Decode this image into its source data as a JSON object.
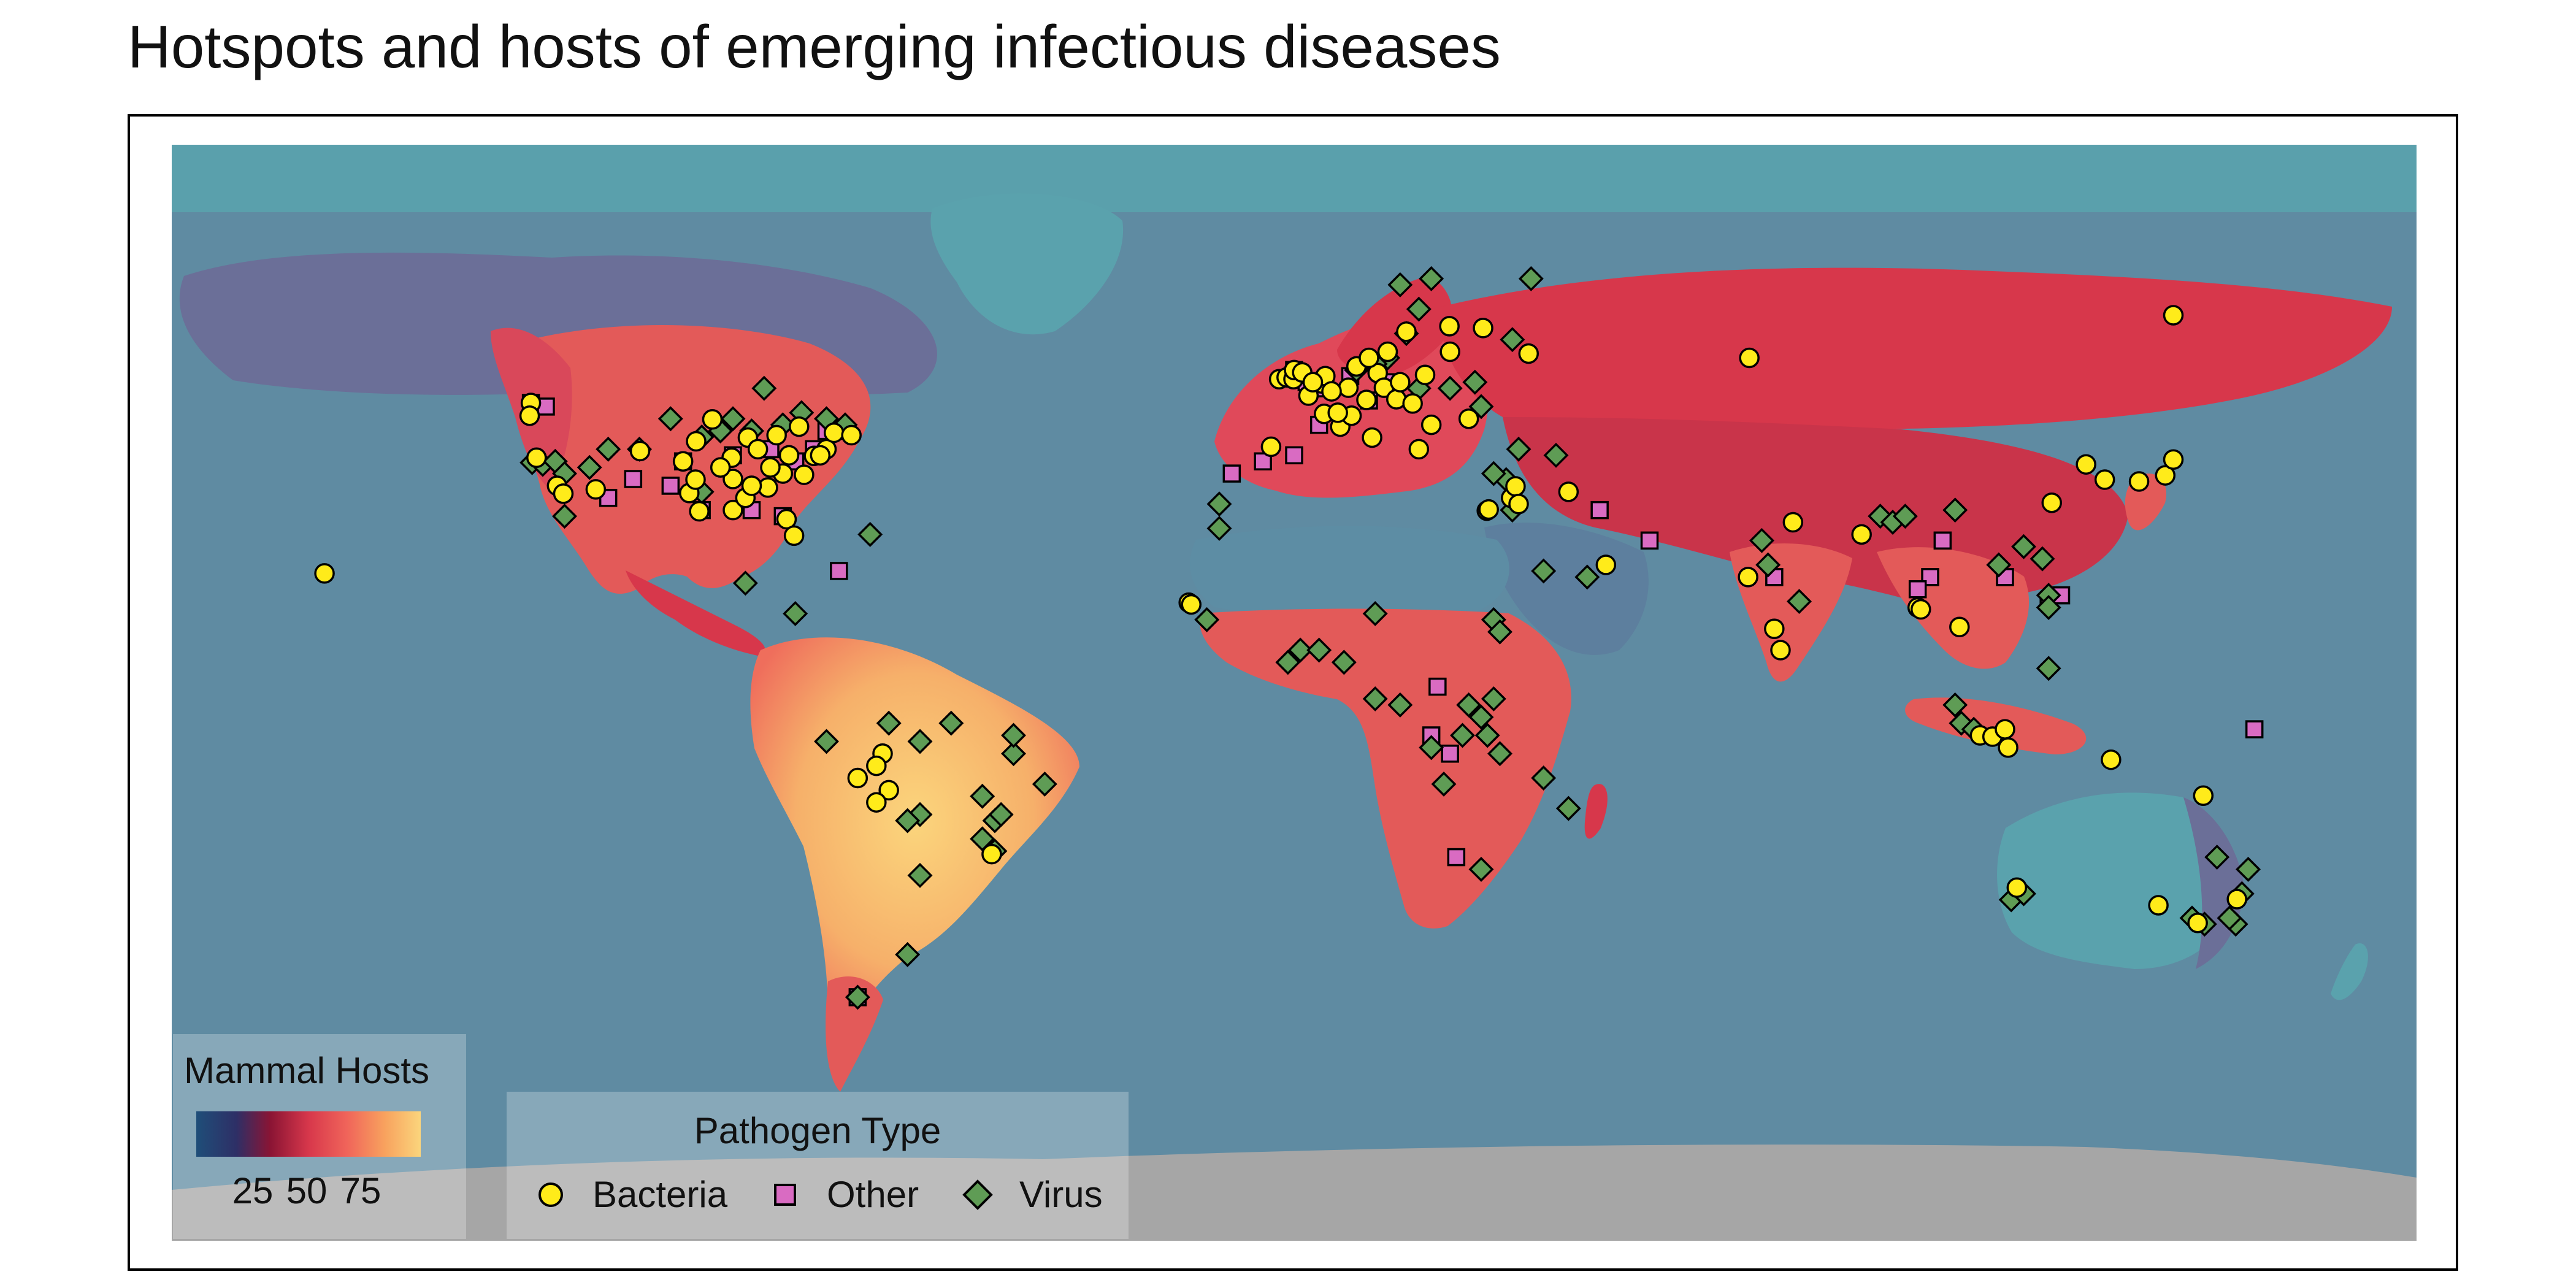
{
  "title": "Hotspots and hosts of emerging infectious diseases",
  "chart_data": {
    "type": "map-scatter",
    "projection": "equirectangular",
    "x_range_lon": [
      -180,
      180
    ],
    "y_range_lat": [
      -90,
      90
    ],
    "raster_legend": {
      "title": "Mammal Hosts",
      "tick_labels": [
        "25",
        "50",
        "75"
      ],
      "colors": [
        "#1f4e79",
        "#2e2f66",
        "#8a1434",
        "#d7374b",
        "#f0645a",
        "#f8a25e",
        "#fbd57c"
      ]
    },
    "point_legend": {
      "title": "Pathogen Type",
      "entries": [
        {
          "label": "Bacteria",
          "shape": "circle",
          "color": "#ffeb1a"
        },
        {
          "label": "Other",
          "shape": "square",
          "color": "#d96bc2"
        },
        {
          "label": "Virus",
          "shape": "diamond",
          "color": "#5f9c55"
        }
      ]
    },
    "colors": {
      "ocean": "#5f8ba2",
      "cold_land": "#5aa2ad",
      "antarctica": "#a6a6a6"
    },
    "points": {
      "Bacteria": [
        [
          -122.4,
          47.6
        ],
        [
          -122.6,
          45.5
        ],
        [
          -104.9,
          39.7
        ],
        [
          -95.9,
          41.3
        ],
        [
          -90.2,
          38.6
        ],
        [
          -87.6,
          41.9
        ],
        [
          -83,
          42.3
        ],
        [
          -79.4,
          43.7
        ],
        [
          -75,
          40
        ],
        [
          -73.8,
          42.7
        ],
        [
          -71,
          42.3
        ],
        [
          -77,
          38.9
        ],
        [
          -78.6,
          35.8
        ],
        [
          -84.4,
          33.7
        ],
        [
          -90,
          35.1
        ],
        [
          -97,
          32.8
        ],
        [
          -95.4,
          29.8
        ],
        [
          -90,
          30
        ],
        [
          -81.4,
          28.5
        ],
        [
          -80.2,
          25.8
        ],
        [
          -112,
          33.4
        ],
        [
          -118.2,
          34
        ],
        [
          -117.2,
          32.7
        ],
        [
          -121.5,
          38.6
        ],
        [
          -93.3,
          44.9
        ],
        [
          -86,
          40
        ],
        [
          -81,
          39
        ],
        [
          -76,
          39
        ],
        [
          -82,
          36
        ],
        [
          -84,
          37
        ],
        [
          -92,
          37
        ],
        [
          -96,
          35
        ],
        [
          -98,
          38
        ],
        [
          -88,
          32
        ],
        [
          -87,
          34
        ],
        [
          -155.5,
          19.6
        ],
        [
          -66,
          -10
        ],
        [
          -67,
          -12
        ],
        [
          -70,
          -14
        ],
        [
          -65,
          -16
        ],
        [
          -67,
          -18
        ],
        [
          -48.5,
          -26.5
        ],
        [
          -16.9,
          14.8
        ],
        [
          -16.5,
          14.5
        ],
        [
          -2.4,
          51.5
        ],
        [
          -1.2,
          51.8
        ],
        [
          -0.1,
          51.5
        ],
        [
          0,
          53
        ],
        [
          1.3,
          52.6
        ],
        [
          2.3,
          48.8
        ],
        [
          4.4,
          50.8
        ],
        [
          5,
          52
        ],
        [
          4.8,
          45.8
        ],
        [
          7.4,
          43.7
        ],
        [
          8.7,
          50.1
        ],
        [
          9.2,
          45.5
        ],
        [
          10,
          53.6
        ],
        [
          11.6,
          48.1
        ],
        [
          12.5,
          41.9
        ],
        [
          13.4,
          52.5
        ],
        [
          14.4,
          50.1
        ],
        [
          16.4,
          48.2
        ],
        [
          17,
          51
        ],
        [
          18,
          59.3
        ],
        [
          19,
          47.5
        ],
        [
          21,
          52.2
        ],
        [
          24.9,
          60.2
        ],
        [
          25,
          56
        ],
        [
          30.3,
          59.9
        ],
        [
          37.6,
          55.7
        ],
        [
          20,
          40
        ],
        [
          -3.7,
          40.4
        ],
        [
          6,
          49.5
        ],
        [
          7,
          46
        ],
        [
          3,
          51
        ],
        [
          15,
          56
        ],
        [
          12,
          55
        ],
        [
          22,
          44
        ],
        [
          28,
          45
        ],
        [
          30.9,
          29.9
        ],
        [
          31.2,
          30.1
        ],
        [
          34.8,
          32
        ],
        [
          35.5,
          33.9
        ],
        [
          36,
          31
        ],
        [
          50,
          21
        ],
        [
          44,
          33
        ],
        [
          72.8,
          19
        ],
        [
          77,
          10.5
        ],
        [
          78,
          7
        ],
        [
          80,
          28
        ],
        [
          91,
          26
        ],
        [
          100,
          14
        ],
        [
          100.5,
          13.7
        ],
        [
          106.7,
          10.8
        ],
        [
          110,
          -7
        ],
        [
          112,
          -7.2
        ],
        [
          114,
          -6
        ],
        [
          114.5,
          -9
        ],
        [
          121.5,
          31.2
        ],
        [
          127,
          37.5
        ],
        [
          130,
          35
        ],
        [
          135.5,
          34.7
        ],
        [
          139.7,
          35.7
        ],
        [
          141,
          38.3
        ],
        [
          131,
          -11
        ],
        [
          144.9,
          -37.8
        ],
        [
          151.2,
          -33.9
        ],
        [
          138.6,
          -34.9
        ],
        [
          115.9,
          -32
        ],
        [
          145.8,
          -16.9
        ],
        [
          73,
          55
        ],
        [
          141,
          62
        ]
      ],
      "Other": [
        [
          -122.4,
          47.6
        ],
        [
          -120,
          47
        ],
        [
          -106,
          35.1
        ],
        [
          -98,
          38
        ],
        [
          -90,
          39
        ],
        [
          -84,
          40
        ],
        [
          -80,
          38
        ],
        [
          -77,
          40
        ],
        [
          -75,
          43
        ],
        [
          -73,
          43
        ],
        [
          -100,
          34
        ],
        [
          -110,
          32
        ],
        [
          -95,
          30
        ],
        [
          -87,
          30
        ],
        [
          -82,
          29
        ],
        [
          -73,
          20
        ],
        [
          -10,
          36
        ],
        [
          -5,
          38
        ],
        [
          0,
          39
        ],
        [
          0,
          53
        ],
        [
          2,
          51
        ],
        [
          5,
          50
        ],
        [
          9,
          52
        ],
        [
          12,
          48
        ],
        [
          15,
          51
        ],
        [
          4,
          44
        ],
        [
          23,
          1
        ],
        [
          22,
          -7
        ],
        [
          25,
          -10
        ],
        [
          26,
          -27
        ],
        [
          -70,
          -50
        ],
        [
          57,
          25
        ],
        [
          77,
          19
        ],
        [
          104,
          25
        ],
        [
          102,
          19
        ],
        [
          100,
          17
        ],
        [
          114,
          19
        ],
        [
          121,
          15
        ],
        [
          123,
          16
        ],
        [
          154,
          -6
        ],
        [
          49,
          30
        ]
      ],
      "Virus": [
        [
          -122.2,
          37.8
        ],
        [
          -120.5,
          37.5
        ],
        [
          -118.5,
          38
        ],
        [
          -117,
          36
        ],
        [
          -113,
          37
        ],
        [
          -95,
          33
        ],
        [
          -90,
          45
        ],
        [
          -85,
          50
        ],
        [
          -79,
          46
        ],
        [
          -75,
          45
        ],
        [
          -72,
          44
        ],
        [
          -92,
          43
        ],
        [
          -87,
          43
        ],
        [
          -82,
          44
        ],
        [
          -100,
          45
        ],
        [
          -95,
          42
        ],
        [
          -105,
          40
        ],
        [
          -110,
          40
        ],
        [
          -88,
          18
        ],
        [
          -68,
          26
        ],
        [
          -117,
          29
        ],
        [
          -80,
          13
        ],
        [
          -60,
          -30
        ],
        [
          -62,
          -43
        ],
        [
          -70,
          -50
        ],
        [
          -65,
          -5
        ],
        [
          -55,
          -5
        ],
        [
          -60,
          -8
        ],
        [
          -45,
          -10
        ],
        [
          -50,
          -17
        ],
        [
          -50,
          -24
        ],
        [
          -48,
          -21
        ],
        [
          -47,
          -20
        ],
        [
          -48,
          -26
        ],
        [
          -40,
          -15
        ],
        [
          -45,
          -7
        ],
        [
          -60,
          -20
        ],
        [
          -62,
          -21
        ],
        [
          -75,
          -8
        ],
        [
          -12,
          27
        ],
        [
          -12,
          31
        ],
        [
          -14,
          12
        ],
        [
          -1,
          5
        ],
        [
          1,
          7
        ],
        [
          4,
          7
        ],
        [
          8,
          5
        ],
        [
          13,
          13
        ],
        [
          13,
          -1
        ],
        [
          17,
          -2
        ],
        [
          22,
          -9
        ],
        [
          24,
          -15
        ],
        [
          27,
          -7
        ],
        [
          28,
          -2
        ],
        [
          30,
          -4
        ],
        [
          31,
          -7
        ],
        [
          32,
          -1
        ],
        [
          33,
          -10
        ],
        [
          40,
          -14
        ],
        [
          44,
          -19
        ],
        [
          30,
          -29
        ],
        [
          32,
          12
        ],
        [
          33,
          10
        ],
        [
          40,
          20
        ],
        [
          47,
          19
        ],
        [
          34,
          35
        ],
        [
          32,
          36
        ],
        [
          35,
          30
        ],
        [
          42,
          39
        ],
        [
          36,
          40
        ],
        [
          29,
          51
        ],
        [
          35,
          58
        ],
        [
          38,
          68
        ],
        [
          22,
          68
        ],
        [
          20,
          63
        ],
        [
          17,
          67
        ],
        [
          18,
          59
        ],
        [
          15,
          55
        ],
        [
          13,
          54
        ],
        [
          10,
          53
        ],
        [
          20,
          50
        ],
        [
          25,
          50
        ],
        [
          30,
          47
        ],
        [
          76,
          21
        ],
        [
          81,
          15
        ],
        [
          75,
          25
        ],
        [
          94,
          29
        ],
        [
          96,
          28
        ],
        [
          98,
          29
        ],
        [
          113,
          21
        ],
        [
          117,
          24
        ],
        [
          120,
          22
        ],
        [
          121,
          16
        ],
        [
          106,
          30
        ],
        [
          107,
          -5
        ],
        [
          109,
          -6
        ],
        [
          121,
          4
        ],
        [
          106,
          -2
        ],
        [
          121,
          14
        ],
        [
          148,
          -27
        ],
        [
          153,
          -29
        ],
        [
          152,
          -33
        ],
        [
          144,
          -37
        ],
        [
          146,
          -38
        ],
        [
          115,
          -34
        ],
        [
          117,
          -33
        ],
        [
          151,
          -38
        ],
        [
          150,
          -37
        ]
      ]
    }
  }
}
